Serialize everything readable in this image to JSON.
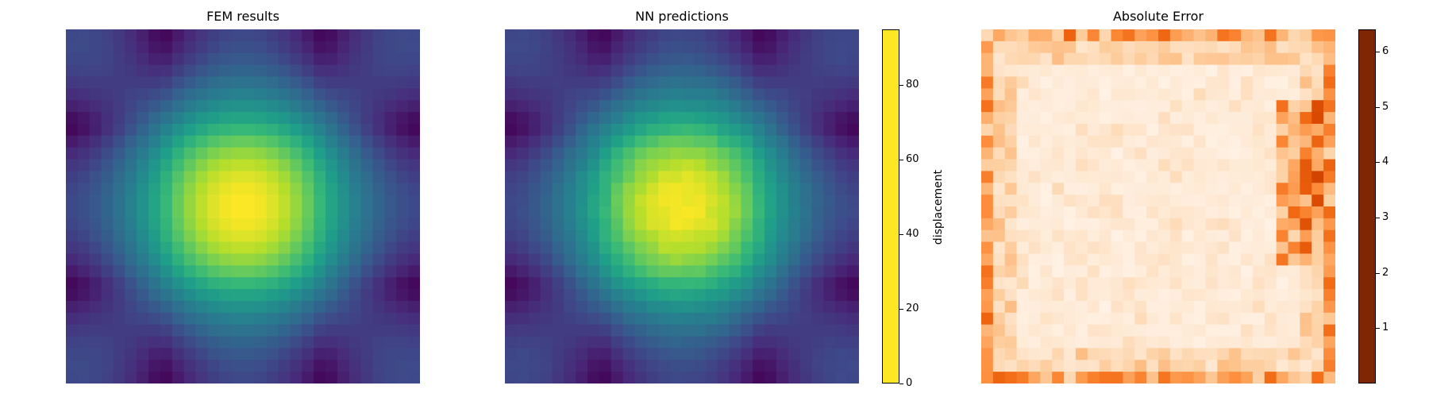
{
  "chart_data": [
    {
      "type": "heatmap",
      "title": "FEM results",
      "grid": [
        30,
        30
      ],
      "value_range": [
        0,
        95
      ],
      "colormap": "viridis",
      "axes": "off"
    },
    {
      "type": "heatmap",
      "title": "NN predictions",
      "grid": [
        30,
        30
      ],
      "value_range": [
        0,
        95
      ],
      "colormap": "viridis",
      "axes": "off",
      "colorbar": {
        "label": "displacement",
        "ticks": [
          "0",
          "20",
          "40",
          "60",
          "80"
        ],
        "range": [
          0,
          95
        ]
      }
    },
    {
      "type": "heatmap",
      "title": "Absolute Error",
      "grid": [
        30,
        30
      ],
      "value_range": [
        0,
        6.4
      ],
      "colormap": "oranges",
      "axes": "off",
      "colorbar": {
        "label": "",
        "ticks": [
          "1",
          "2",
          "3",
          "4",
          "5",
          "6"
        ],
        "range": [
          0,
          6.4
        ]
      }
    }
  ]
}
